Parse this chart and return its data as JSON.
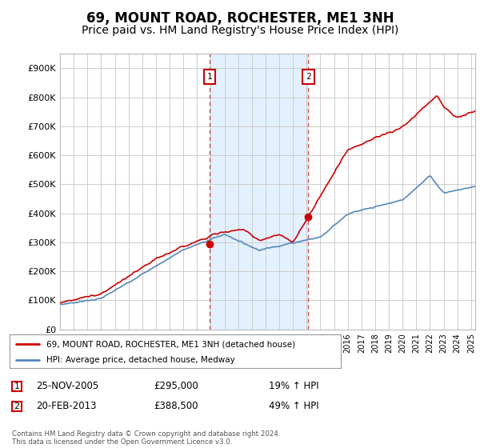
{
  "title": "69, MOUNT ROAD, ROCHESTER, ME1 3NH",
  "subtitle": "Price paid vs. HM Land Registry's House Price Index (HPI)",
  "ylabel_ticks": [
    "£0",
    "£100K",
    "£200K",
    "£300K",
    "£400K",
    "£500K",
    "£600K",
    "£700K",
    "£800K",
    "£900K"
  ],
  "ytick_vals": [
    0,
    100000,
    200000,
    300000,
    400000,
    500000,
    600000,
    700000,
    800000,
    900000
  ],
  "ylim": [
    0,
    950000
  ],
  "xlim_start": 1995.0,
  "xlim_end": 2025.3,
  "purchase1_date": 2005.92,
  "purchase1_price": 295000,
  "purchase1_label": "1",
  "purchase1_pct": "19% ↑ HPI",
  "purchase1_date_str": "25-NOV-2005",
  "purchase2_date": 2013.12,
  "purchase2_price": 388500,
  "purchase2_label": "2",
  "purchase2_pct": "49% ↑ HPI",
  "purchase2_date_str": "20-FEB-2013",
  "legend_line1": "69, MOUNT ROAD, ROCHESTER, ME1 3NH (detached house)",
  "legend_line2": "HPI: Average price, detached house, Medway",
  "footer": "Contains HM Land Registry data © Crown copyright and database right 2024.\nThis data is licensed under the Open Government Licence v3.0.",
  "line_color_house": "#cc0000",
  "line_color_hpi": "#5588bb",
  "marker_color": "#cc0000",
  "shaded_color": "#ddeeff",
  "background_color": "#ffffff",
  "grid_color": "#cccccc",
  "title_fontsize": 12,
  "subtitle_fontsize": 10,
  "axis_fontsize": 8
}
